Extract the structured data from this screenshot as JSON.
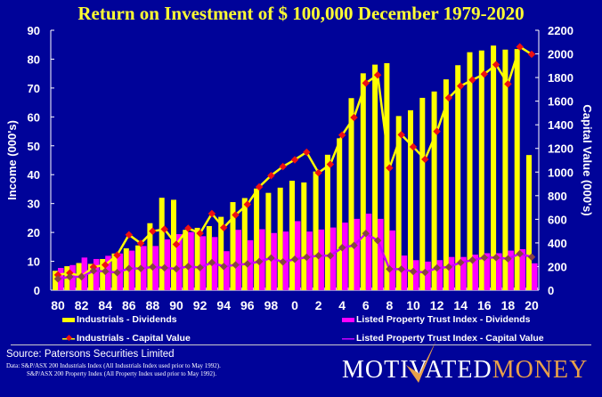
{
  "chart_data": {
    "type": "bar+line",
    "title": "Return on Investment of $ 100,000 December 1979-2020",
    "ylabel": "Income (000's)",
    "y2label": "Capital Value (000's)",
    "ylim": [
      0,
      90
    ],
    "y2lim": [
      0,
      2200
    ],
    "yticks": [
      0,
      10,
      20,
      30,
      40,
      50,
      60,
      70,
      80,
      90
    ],
    "y2ticks": [
      0,
      200,
      400,
      600,
      800,
      1000,
      1200,
      1400,
      1600,
      1800,
      2000,
      2200
    ],
    "x": [
      1980,
      1981,
      1982,
      1983,
      1984,
      1985,
      1986,
      1987,
      1988,
      1989,
      1990,
      1991,
      1992,
      1993,
      1994,
      1995,
      1996,
      1997,
      1998,
      1999,
      2000,
      2001,
      2002,
      2003,
      2004,
      2005,
      2006,
      2007,
      2008,
      2009,
      2010,
      2011,
      2012,
      2013,
      2014,
      2015,
      2016,
      2017,
      2018,
      2019,
      2020
    ],
    "xtick_labels": [
      "80",
      "82",
      "84",
      "86",
      "88",
      "90",
      "92",
      "94",
      "96",
      "98",
      "0",
      "2",
      "4",
      "6",
      "8",
      "10",
      "12",
      "14",
      "16",
      "18",
      "20"
    ],
    "grid": false,
    "series": [
      {
        "name": "Industrials - Dividends",
        "kind": "bar",
        "axis": "left",
        "color": "#ffff00",
        "values": [
          6.7,
          8.3,
          9.4,
          9.1,
          10.8,
          12.7,
          14.5,
          15.5,
          23.2,
          32,
          31.3,
          20.9,
          21.6,
          22.2,
          25.4,
          30.5,
          31.9,
          35.2,
          33.7,
          35.5,
          37.9,
          37.3,
          41.1,
          46.9,
          52.6,
          66.5,
          75.1,
          78.1,
          78.6,
          60.3,
          62.3,
          66.6,
          68.8,
          73.0,
          77.9,
          82.4,
          83.0,
          84.7,
          83.3,
          83.5,
          46.8
        ]
      },
      {
        "name": "Listed Property Trust Index - Dividends",
        "kind": "bar",
        "axis": "left",
        "color": "#ff00ff",
        "values": [
          7.7,
          8.7,
          11.3,
          10.8,
          11.9,
          12.7,
          13.7,
          15.3,
          15.3,
          17.6,
          19.4,
          20.1,
          18.7,
          18.4,
          13.5,
          20.9,
          17.3,
          21.1,
          19.8,
          20.3,
          23.9,
          20.3,
          21.0,
          21.7,
          23.4,
          24.7,
          26.5,
          24.7,
          20.7,
          12.0,
          10.4,
          9.9,
          10.4,
          11.5,
          11.5,
          12.3,
          12.8,
          12.8,
          13.7,
          14.2,
          9.3
        ]
      },
      {
        "name": "Industrials - Capital Value",
        "kind": "line",
        "axis": "right",
        "color": "#ffff00",
        "marker_color": "#ee1111",
        "values": [
          129,
          146,
          116,
          196,
          214,
          297,
          469,
          396,
          499,
          516,
          388,
          524,
          481,
          648,
          529,
          637,
          726,
          874,
          970,
          1046,
          1104,
          1168,
          994,
          1065,
          1313,
          1462,
          1753,
          1821,
          1035,
          1316,
          1213,
          1108,
          1344,
          1628,
          1728,
          1780,
          1829,
          1909,
          1745,
          2060,
          1997
        ]
      },
      {
        "name": "Listed Property Trust Index - Capital Value",
        "kind": "line",
        "axis": "right",
        "color": "#cc00ff",
        "marker_color": "#884444",
        "values": [
          96,
          113,
          113,
          164,
          159,
          149,
          184,
          184,
          197,
          189,
          181,
          201,
          191,
          234,
          201,
          214,
          222,
          242,
          272,
          239,
          262,
          279,
          292,
          292,
          360,
          379,
          480,
          420,
          179,
          178,
          158,
          151,
          188,
          196,
          234,
          254,
          276,
          276,
          266,
          309,
          281
        ]
      }
    ],
    "legend_placement": "bottom"
  },
  "footer": {
    "source": "Source: Patersons  Securities Limited",
    "note1": "Data: S&P/ASX 200 Industrials Index (All Industrials Index used prior to May 1992).",
    "note2": "S&P/ASX 200 Property Index (All Property Index used prior to May 1992).",
    "logo_part1": "MOTIVATED",
    "logo_part2": "MONEY"
  },
  "colors": {
    "background": "#000399"
  }
}
